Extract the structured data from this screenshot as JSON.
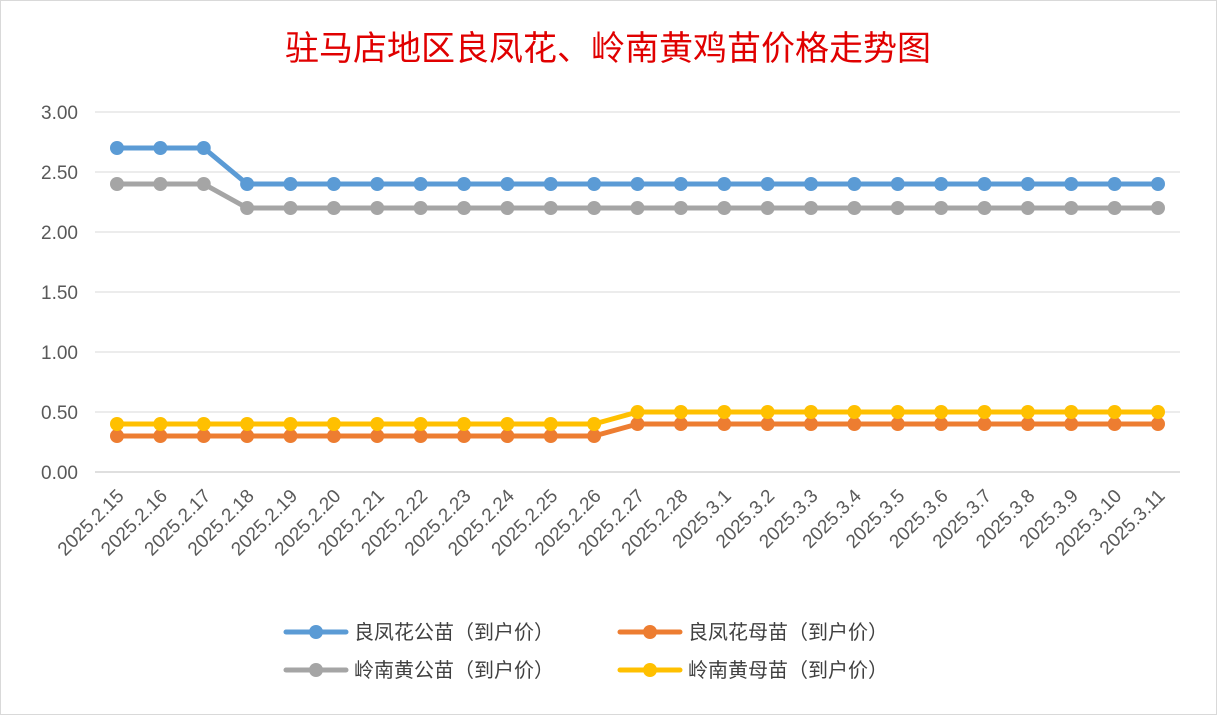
{
  "chart_data": {
    "type": "line",
    "title": "驻马店地区良凤花、岭南黄鸡苗价格走势图",
    "xlabel": "",
    "ylabel": "",
    "ylim": [
      0,
      3
    ],
    "y_ticks": [
      "0.00",
      "0.50",
      "1.00",
      "1.50",
      "2.00",
      "2.50",
      "3.00"
    ],
    "grid": true,
    "legend_position": "bottom",
    "categories": [
      "2025.2.15",
      "2025.2.16",
      "2025.2.17",
      "2025.2.18",
      "2025.2.19",
      "2025.2.20",
      "2025.2.21",
      "2025.2.22",
      "2025.2.23",
      "2025.2.24",
      "2025.2.25",
      "2025.2.26",
      "2025.2.27",
      "2025.2.28",
      "2025.3.1",
      "2025.3.2",
      "2025.3.3",
      "2025.3.4",
      "2025.3.5",
      "2025.3.6",
      "2025.3.7",
      "2025.3.8",
      "2025.3.9",
      "2025.3.10",
      "2025.3.11"
    ],
    "series": [
      {
        "name": "良凤花公苗（到户价）",
        "color": "#5b9bd5",
        "values": [
          2.7,
          2.7,
          2.7,
          2.4,
          2.4,
          2.4,
          2.4,
          2.4,
          2.4,
          2.4,
          2.4,
          2.4,
          2.4,
          2.4,
          2.4,
          2.4,
          2.4,
          2.4,
          2.4,
          2.4,
          2.4,
          2.4,
          2.4,
          2.4,
          2.4
        ]
      },
      {
        "name": "良凤花母苗（到户价）",
        "color": "#ed7d31",
        "values": [
          0.3,
          0.3,
          0.3,
          0.3,
          0.3,
          0.3,
          0.3,
          0.3,
          0.3,
          0.3,
          0.3,
          0.3,
          0.4,
          0.4,
          0.4,
          0.4,
          0.4,
          0.4,
          0.4,
          0.4,
          0.4,
          0.4,
          0.4,
          0.4,
          0.4
        ]
      },
      {
        "name": "岭南黄公苗（到户价）",
        "color": "#a5a5a5",
        "values": [
          2.4,
          2.4,
          2.4,
          2.2,
          2.2,
          2.2,
          2.2,
          2.2,
          2.2,
          2.2,
          2.2,
          2.2,
          2.2,
          2.2,
          2.2,
          2.2,
          2.2,
          2.2,
          2.2,
          2.2,
          2.2,
          2.2,
          2.2,
          2.2,
          2.2
        ]
      },
      {
        "name": "岭南黄母苗（到户价）",
        "color": "#ffc000",
        "values": [
          0.4,
          0.4,
          0.4,
          0.4,
          0.4,
          0.4,
          0.4,
          0.4,
          0.4,
          0.4,
          0.4,
          0.4,
          0.5,
          0.5,
          0.5,
          0.5,
          0.5,
          0.5,
          0.5,
          0.5,
          0.5,
          0.5,
          0.5,
          0.5,
          0.5
        ]
      }
    ]
  }
}
